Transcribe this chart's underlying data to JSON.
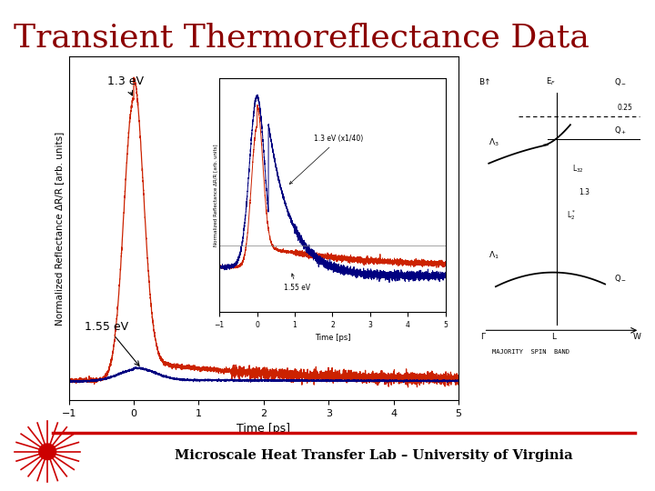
{
  "title": "Transient Thermoreflectance Data",
  "title_color": "#8B0000",
  "title_fontsize": 26,
  "bg_color": "#FFFFFF",
  "main_plot": {
    "xlabel": "Time [ps]",
    "ylabel": "Normalized Reflectance ΔR/R [arb. units]",
    "xlim": [
      -1,
      5
    ],
    "label_13eV": "1.3 eV",
    "label_155eV": "1.55 eV",
    "color_red": "#CC2200",
    "color_blue": "#000080"
  },
  "inset_plot": {
    "xlabel": "Time [ps]",
    "ylabel": "Normalized Reflectance ΔR/R [arb. units]",
    "xlim": [
      -1,
      5
    ],
    "label_13eV": "1.3 eV (x1/40)",
    "label_155eV": "1.55 eV",
    "color_red": "#CC2200",
    "color_blue": "#000080"
  },
  "footer_text": "Microscale Heat Transfer Lab – University of Virginia",
  "footer_color": "#000000",
  "footer_line_color": "#CC0000"
}
